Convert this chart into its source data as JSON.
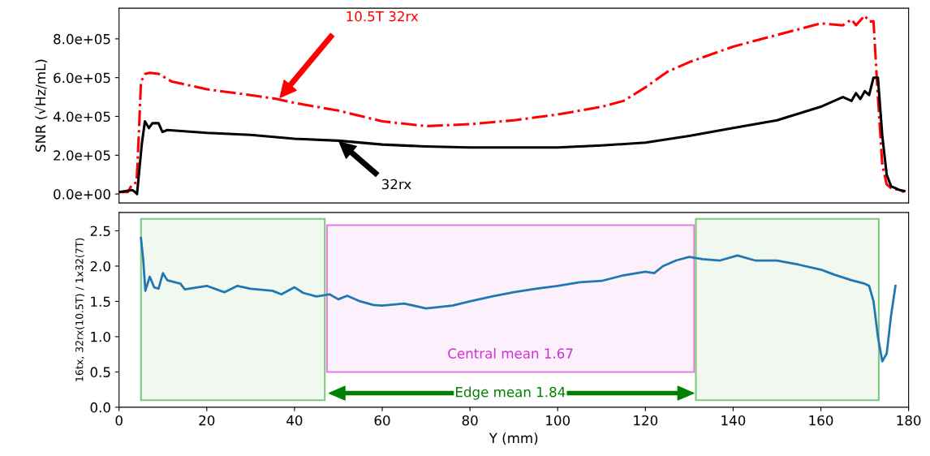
{
  "chart_data": [
    {
      "type": "line",
      "ylabel": "SNR (√Hz/mL)",
      "xlim": [
        0,
        180
      ],
      "ylim": [
        -46000,
        958000
      ],
      "tick_labels": "y",
      "grid": false,
      "legend": false,
      "yticks": [
        {
          "value": 0,
          "label": "0.0e+00"
        },
        {
          "value": 200000,
          "label": "2.0e+05"
        },
        {
          "value": 400000,
          "label": "4.0e+05"
        },
        {
          "value": 600000,
          "label": "6.0e+05"
        },
        {
          "value": 800000,
          "label": "8.0e+05"
        }
      ],
      "series": [
        {
          "color": "#ff0000",
          "line_style": "dashdot",
          "x": [
            0,
            2,
            3,
            4,
            4.5,
            5,
            6,
            7,
            9,
            12,
            20,
            30,
            36,
            40,
            50,
            60,
            70,
            80,
            90,
            100,
            110,
            115,
            120,
            125,
            130,
            140,
            150,
            155,
            160,
            165,
            167,
            168,
            170,
            171,
            172,
            173,
            174,
            175,
            176,
            178,
            179
          ],
          "values": [
            10000,
            10000,
            50000,
            60000,
            300000,
            580000,
            620000,
            625000,
            620000,
            580000,
            540000,
            510000,
            490000,
            470000,
            430000,
            375000,
            350000,
            360000,
            380000,
            410000,
            450000,
            480000,
            550000,
            630000,
            680000,
            760000,
            820000,
            850000,
            880000,
            870000,
            900000,
            870000,
            920000,
            890000,
            890000,
            500000,
            150000,
            50000,
            30000,
            20000,
            10000
          ]
        },
        {
          "color": "#000000",
          "line_style": "solid",
          "x": [
            0,
            3,
            3.4,
            4.1,
            5.2,
            5.9,
            6.8,
            7.6,
            9,
            9.9,
            11,
            20,
            30,
            40,
            50,
            60,
            70,
            80,
            100,
            110,
            120,
            130,
            140,
            150,
            160,
            165,
            167,
            168,
            169,
            170,
            171,
            172,
            173,
            174,
            175,
            176,
            177,
            178,
            179
          ],
          "values": [
            10000,
            20000,
            15000,
            0,
            260000,
            375000,
            340000,
            365000,
            365000,
            320000,
            330000,
            315000,
            305000,
            285000,
            275000,
            255000,
            245000,
            240000,
            240000,
            250000,
            265000,
            300000,
            340000,
            380000,
            450000,
            500000,
            480000,
            520000,
            490000,
            530000,
            510000,
            600000,
            600000,
            300000,
            100000,
            40000,
            30000,
            20000,
            15000
          ]
        }
      ],
      "annotations": [
        "10.5T 32rx",
        "32rx"
      ]
    },
    {
      "type": "line",
      "xlabel": "Y (mm)",
      "ylabel": "16tx, 32rx(10.5T) / 1x32(7T)",
      "xlim": [
        0,
        180
      ],
      "ylim": [
        0,
        2.76
      ],
      "grid": false,
      "legend": false,
      "xticks": [
        0,
        20,
        40,
        60,
        80,
        100,
        120,
        140,
        160,
        180
      ],
      "yticks": [
        {
          "value": 0,
          "label": "0.0"
        },
        {
          "value": 0.5,
          "label": "0.5"
        },
        {
          "value": 1,
          "label": "1.0"
        },
        {
          "value": 1.5,
          "label": "1.5"
        },
        {
          "value": 2,
          "label": "2.0"
        },
        {
          "value": 2.5,
          "label": "2.5"
        }
      ],
      "series": [
        {
          "color": "#1f77b4",
          "line_style": "solid",
          "x": [
            5,
            5.5,
            6,
            7,
            8,
            9,
            10,
            11,
            14,
            15,
            20,
            24,
            27,
            30,
            35,
            37,
            40,
            42,
            45,
            48,
            50,
            52,
            55,
            58,
            60,
            65,
            70,
            73,
            76,
            80,
            85,
            90,
            95,
            100,
            105,
            110,
            115,
            120,
            122,
            124,
            127,
            130,
            133,
            137,
            141,
            145,
            150,
            155,
            160,
            163,
            167,
            170,
            171,
            172,
            173,
            174,
            175,
            176,
            177
          ],
          "values": [
            2.4,
            2.1,
            1.65,
            1.85,
            1.7,
            1.68,
            1.9,
            1.8,
            1.75,
            1.67,
            1.72,
            1.63,
            1.72,
            1.68,
            1.65,
            1.6,
            1.7,
            1.62,
            1.57,
            1.6,
            1.53,
            1.58,
            1.5,
            1.45,
            1.44,
            1.47,
            1.4,
            1.42,
            1.44,
            1.5,
            1.57,
            1.63,
            1.68,
            1.72,
            1.77,
            1.79,
            1.87,
            1.92,
            1.9,
            2.0,
            2.08,
            2.13,
            2.1,
            2.08,
            2.15,
            2.08,
            2.08,
            2.02,
            1.95,
            1.88,
            1.8,
            1.75,
            1.72,
            1.5,
            1.0,
            0.65,
            0.76,
            1.3,
            1.72
          ]
        }
      ],
      "bands": [
        {
          "axis": "x",
          "from": 5,
          "to": 46.9,
          "color": "#80c880"
        },
        {
          "axis": "x",
          "from": 47.4,
          "to": 131.1,
          "color": "#e080e0"
        },
        {
          "axis": "x",
          "from": 131.5,
          "to": 173.2,
          "color": "#80c880"
        }
      ],
      "annotations": [
        "Central mean 1.67",
        "Edge mean 1.84"
      ]
    }
  ]
}
